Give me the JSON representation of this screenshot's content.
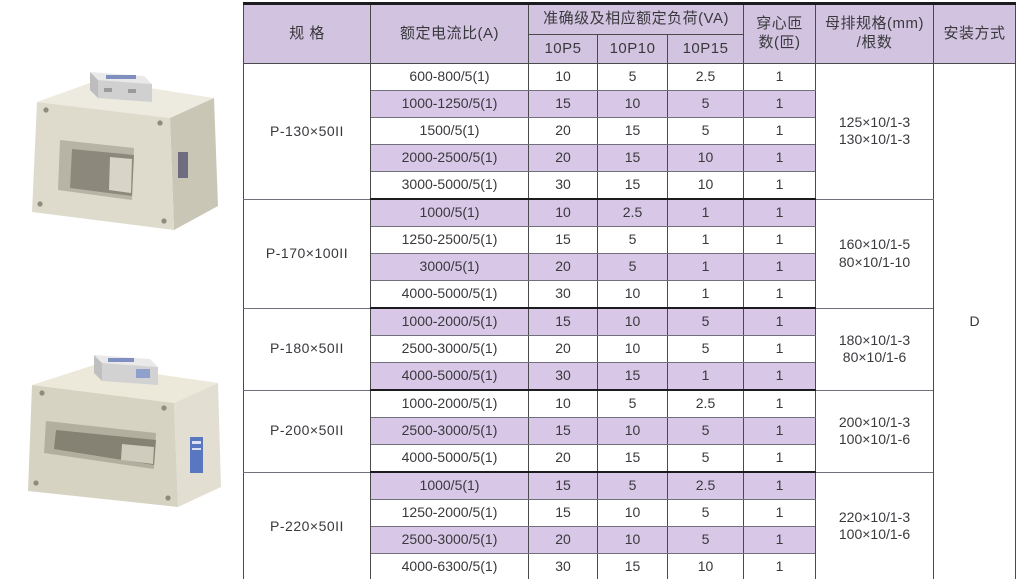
{
  "palette": {
    "row_shade": "#d8c7e6",
    "header_shade": "#d2c3e0",
    "border_dark": "#4a4a4c",
    "border_light": "#70707a",
    "group_border": "#1c1c1e",
    "text": "#39393d",
    "product_body_beige": "#dedbcc",
    "product_side_beige": "#cbc8b8",
    "product_label_blue": "#5877c0"
  },
  "products": [
    {
      "id": "product-photo-1",
      "description_name": "busbar-type-current-transformer-small"
    },
    {
      "id": "product-photo-2",
      "description_name": "busbar-type-current-transformer-wide"
    }
  ],
  "table": {
    "headers": {
      "spec": "规  格",
      "ratio": "额定电流比(A)",
      "accuracy": "准确级及相应额定负荷(VA)",
      "p5": "10P5",
      "p10": "10P10",
      "p15": "10P15",
      "turns_line1": "穿心匝",
      "turns_line2": "数(匝)",
      "busbar_line1": "母排规格(mm)",
      "busbar_line2": "/根数",
      "install": "安装方式"
    },
    "install_value": "D",
    "groups": [
      {
        "spec": "P-130×50II",
        "busbar": [
          "125×10/1-3",
          "130×10/1-3"
        ],
        "rows": [
          [
            "600-800/5(1)",
            "10",
            "5",
            "2.5",
            "1"
          ],
          [
            "1000-1250/5(1)",
            "15",
            "10",
            "5",
            "1"
          ],
          [
            "1500/5(1)",
            "20",
            "15",
            "5",
            "1"
          ],
          [
            "2000-2500/5(1)",
            "20",
            "15",
            "10",
            "1"
          ],
          [
            "3000-5000/5(1)",
            "30",
            "15",
            "10",
            "1"
          ]
        ]
      },
      {
        "spec": "P-170×100II",
        "busbar": [
          "160×10/1-5",
          "80×10/1-10"
        ],
        "rows": [
          [
            "1000/5(1)",
            "10",
            "2.5",
            "1",
            "1"
          ],
          [
            "1250-2500/5(1)",
            "15",
            "5",
            "1",
            "1"
          ],
          [
            "3000/5(1)",
            "20",
            "5",
            "1",
            "1"
          ],
          [
            "4000-5000/5(1)",
            "30",
            "10",
            "1",
            "1"
          ]
        ]
      },
      {
        "spec": "P-180×50II",
        "busbar": [
          "180×10/1-3",
          "80×10/1-6"
        ],
        "rows": [
          [
            "1000-2000/5(1)",
            "15",
            "10",
            "5",
            "1"
          ],
          [
            "2500-3000/5(1)",
            "20",
            "10",
            "5",
            "1"
          ],
          [
            "4000-5000/5(1)",
            "30",
            "15",
            "1",
            "1"
          ]
        ]
      },
      {
        "spec": "P-200×50II",
        "busbar": [
          "200×10/1-3",
          "100×10/1-6"
        ],
        "rows": [
          [
            "1000-2000/5(1)",
            "10",
            "5",
            "2.5",
            "1"
          ],
          [
            "2500-3000/5(1)",
            "15",
            "10",
            "5",
            "1"
          ],
          [
            "4000-5000/5(1)",
            "20",
            "15",
            "5",
            "1"
          ]
        ]
      },
      {
        "spec": "P-220×50II",
        "busbar": [
          "220×10/1-3",
          "100×10/1-6"
        ],
        "rows": [
          [
            "1000/5(1)",
            "15",
            "5",
            "2.5",
            "1"
          ],
          [
            "1250-2000/5(1)",
            "15",
            "10",
            "5",
            "1"
          ],
          [
            "2500-3000/5(1)",
            "20",
            "10",
            "5",
            "1"
          ],
          [
            "4000-6300/5(1)",
            "30",
            "15",
            "10",
            "1"
          ]
        ]
      }
    ]
  }
}
